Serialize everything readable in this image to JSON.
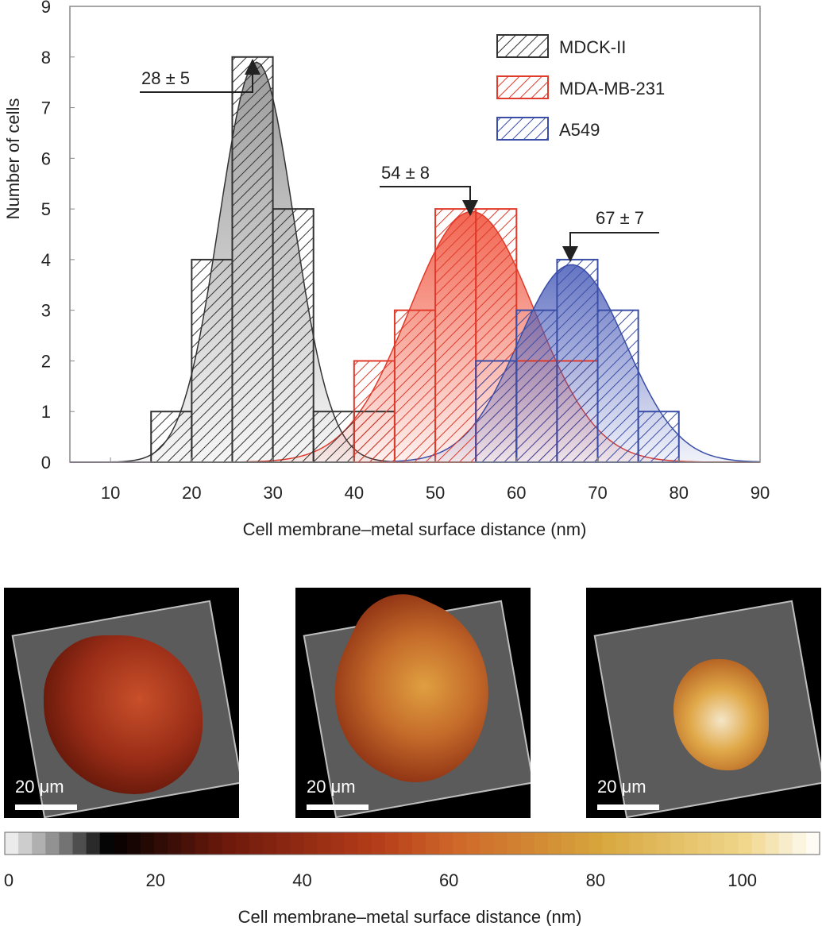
{
  "chart_data": {
    "type": "bar",
    "title": "",
    "xlabel": "Cell membrane–metal surface distance (nm)",
    "ylabel": "Number of cells",
    "xlim": [
      5,
      90
    ],
    "ylim": [
      0,
      9
    ],
    "x_ticks": [
      10,
      20,
      30,
      40,
      50,
      60,
      70,
      80,
      90
    ],
    "y_ticks": [
      0,
      1,
      2,
      3,
      4,
      5,
      6,
      7,
      8,
      9
    ],
    "bin_width": 5,
    "series": [
      {
        "name": "MDCK-II",
        "color": "#333333",
        "fill": "#8a8a8a",
        "bins": [
          [
            15,
            1
          ],
          [
            20,
            4
          ],
          [
            25,
            8
          ],
          [
            30,
            5
          ],
          [
            35,
            1
          ],
          [
            40,
            1
          ]
        ],
        "fit": {
          "mean": 28,
          "sd": 4.6,
          "peak": 7.9
        }
      },
      {
        "name": "MDA-MB-231",
        "color": "#e03a2a",
        "fill": "#f04a32",
        "bins": [
          [
            40,
            2
          ],
          [
            45,
            3
          ],
          [
            50,
            5
          ],
          [
            55,
            5
          ],
          [
            60,
            2
          ],
          [
            65,
            2
          ]
        ],
        "fit": {
          "mean": 54.5,
          "sd": 7.7,
          "peak": 4.95
        }
      },
      {
        "name": "A549",
        "color": "#3a4ea8",
        "fill": "#4a5cb8",
        "bins": [
          [
            55,
            2
          ],
          [
            60,
            3
          ],
          [
            65,
            4
          ],
          [
            70,
            3
          ],
          [
            75,
            1
          ]
        ],
        "fit": {
          "mean": 66.8,
          "sd": 6.6,
          "peak": 3.9
        }
      }
    ],
    "annotations": [
      {
        "text": "28 ± 5",
        "series": "MDCK-II"
      },
      {
        "text": "54 ± 8",
        "series": "MDA-MB-231"
      },
      {
        "text": "67 ± 7",
        "series": "A549"
      }
    ],
    "legend": [
      "MDCK-II",
      "MDA-MB-231",
      "A549"
    ],
    "legend_position": "top-right"
  },
  "images": {
    "scale_labels": [
      "20 μm",
      "20 μm",
      "20 μm"
    ]
  },
  "colorbar": {
    "label": "Cell membrane–metal surface distance (nm)",
    "tick_labels": [
      "0",
      "20",
      "40",
      "60",
      "80",
      "100"
    ],
    "tick_values": [
      0,
      20,
      40,
      60,
      80,
      100
    ],
    "range": [
      0,
      110
    ]
  }
}
